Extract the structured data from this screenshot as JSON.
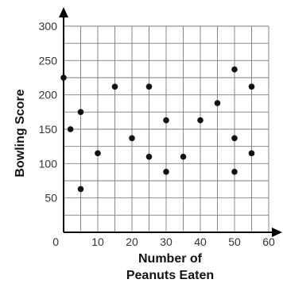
{
  "chart_data": {
    "type": "scatter",
    "xlabel": [
      "Number of",
      "Peanuts Eaten"
    ],
    "ylabel": "Bowling Score",
    "xlim": [
      0,
      60
    ],
    "ylim": [
      0,
      300
    ],
    "x_ticks": [
      0,
      10,
      20,
      30,
      40,
      50,
      60
    ],
    "y_ticks": [
      50,
      100,
      150,
      200,
      250,
      300
    ],
    "grid": true,
    "grid_minor_x": 5,
    "grid_minor_y": 25,
    "points": [
      {
        "x": 0,
        "y": 225
      },
      {
        "x": 2,
        "y": 150
      },
      {
        "x": 5,
        "y": 175
      },
      {
        "x": 5,
        "y": 63
      },
      {
        "x": 10,
        "y": 115
      },
      {
        "x": 15,
        "y": 212
      },
      {
        "x": 20,
        "y": 137
      },
      {
        "x": 25,
        "y": 212
      },
      {
        "x": 25,
        "y": 110
      },
      {
        "x": 30,
        "y": 163
      },
      {
        "x": 30,
        "y": 88
      },
      {
        "x": 35,
        "y": 110
      },
      {
        "x": 40,
        "y": 163
      },
      {
        "x": 45,
        "y": 188
      },
      {
        "x": 50,
        "y": 237
      },
      {
        "x": 50,
        "y": 137
      },
      {
        "x": 50,
        "y": 88
      },
      {
        "x": 55,
        "y": 212
      },
      {
        "x": 55,
        "y": 115
      }
    ]
  }
}
